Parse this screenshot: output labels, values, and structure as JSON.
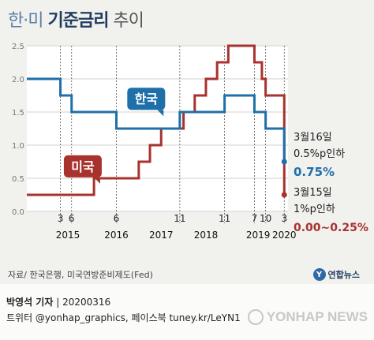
{
  "header": {
    "title_prefix": "한·미 ",
    "title_main": "기준금리",
    "title_suffix": " 추이"
  },
  "chart_data": {
    "type": "line",
    "line_shape": "step",
    "title": "한·미 기준금리 추이",
    "yticks": [
      "2.5",
      "2.0",
      "1.5",
      "1.0",
      "0.5",
      "0.0"
    ],
    "ylim": [
      0,
      2.5
    ],
    "xlim": [
      "2014-06",
      "2020-04"
    ],
    "month_ticks": [
      {
        "label": "3",
        "date": "2015-03"
      },
      {
        "label": "6",
        "date": "2015-06"
      },
      {
        "label": "6",
        "date": "2016-06"
      },
      {
        "label": "11",
        "date": "2017-11"
      },
      {
        "label": "11",
        "date": "2018-11"
      },
      {
        "label": "7",
        "date": "2019-07"
      },
      {
        "label": "10",
        "date": "2019-10"
      },
      {
        "label": "3",
        "date": "2020-03"
      }
    ],
    "year_labels": [
      {
        "label": "2015",
        "date": "2015-05"
      },
      {
        "label": "2016",
        "date": "2016-06"
      },
      {
        "label": "2017",
        "date": "2017-06"
      },
      {
        "label": "2018",
        "date": "2018-06"
      },
      {
        "label": "2019",
        "date": "2019-08"
      },
      {
        "label": "2020",
        "date": "2020-03"
      }
    ],
    "series": [
      {
        "name": "한국",
        "color": "#1f6fa8",
        "points": [
          {
            "date": "2014-06",
            "value": 2.0
          },
          {
            "date": "2015-03",
            "value": 1.75
          },
          {
            "date": "2015-06",
            "value": 1.5
          },
          {
            "date": "2016-06",
            "value": 1.25
          },
          {
            "date": "2017-11",
            "value": 1.5
          },
          {
            "date": "2018-11",
            "value": 1.75
          },
          {
            "date": "2019-07",
            "value": 1.5
          },
          {
            "date": "2019-10",
            "value": 1.25
          },
          {
            "date": "2020-03",
            "value": 0.75
          }
        ]
      },
      {
        "name": "미국",
        "color": "#a8322d",
        "points": [
          {
            "date": "2014-06",
            "value": 0.25
          },
          {
            "date": "2015-12",
            "value": 0.5
          },
          {
            "date": "2016-12",
            "value": 0.75
          },
          {
            "date": "2017-03",
            "value": 1.0
          },
          {
            "date": "2017-06",
            "value": 1.25
          },
          {
            "date": "2017-12",
            "value": 1.5
          },
          {
            "date": "2018-03",
            "value": 1.75
          },
          {
            "date": "2018-06",
            "value": 2.0
          },
          {
            "date": "2018-09",
            "value": 2.25
          },
          {
            "date": "2018-12",
            "value": 2.5
          },
          {
            "date": "2019-07",
            "value": 2.25
          },
          {
            "date": "2019-09",
            "value": 2.0
          },
          {
            "date": "2019-10",
            "value": 1.75
          },
          {
            "date": "2020-03",
            "value": 0.25
          }
        ]
      }
    ],
    "annotations": {
      "korea_date": "3월16일",
      "korea_change": "0.5%p인하",
      "korea_rate": "0.75%",
      "us_date": "3월15일",
      "us_change": "1%p인하",
      "us_rate": "0.00~0.25%"
    }
  },
  "source_text": "자료/ 한국은행, 미국연방준비제도(Fed)",
  "logo_text": "연합뉴스",
  "credit": {
    "author": "박영석 기자",
    "date": "20200316"
  },
  "social_text": "트위터 @yonhap_graphics, 페이스북 tuney.kr/LeYN1",
  "watermark_text": "YONHAP NEWS"
}
